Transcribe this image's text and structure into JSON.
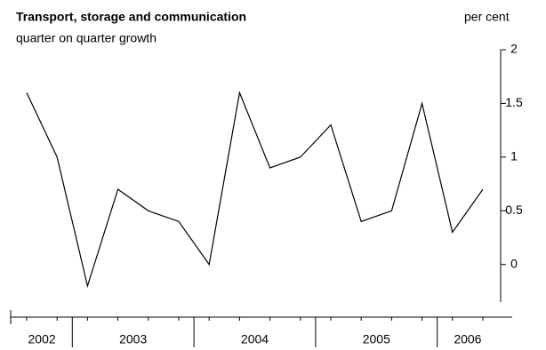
{
  "chart_data": {
    "type": "line",
    "title": "Transport, storage and communication",
    "subtitle": "quarter on quarter growth",
    "y_axis_label": "per cent",
    "categories": [
      "2002",
      "2002",
      "2003",
      "2003",
      "2003",
      "2003",
      "2004",
      "2004",
      "2004",
      "2004",
      "2005",
      "2005",
      "2005",
      "2005",
      "2006",
      "2006"
    ],
    "series": [
      {
        "name": null,
        "color": "#000000",
        "values": [
          1.6,
          1.0,
          -0.2,
          0.7,
          0.5,
          0.4,
          0.0,
          1.6,
          0.9,
          1.0,
          1.3,
          0.4,
          0.5,
          1.5,
          0.3,
          0.7
        ]
      }
    ],
    "ylim": [
      -0.35,
      2
    ],
    "yticks": [
      0,
      0.5,
      1,
      1.5,
      2
    ],
    "grid": false
  }
}
